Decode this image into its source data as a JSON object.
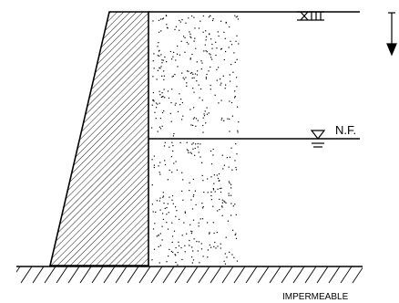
{
  "labels": {
    "water_level": "N.F.",
    "base": "IMPERMEABLE"
  },
  "colors": {
    "line": "#000000",
    "background": "#ffffff"
  },
  "icons": {
    "surface_load": "surface-load-symbol",
    "water_table": "water-table-symbol",
    "direction": "down-arrow"
  }
}
